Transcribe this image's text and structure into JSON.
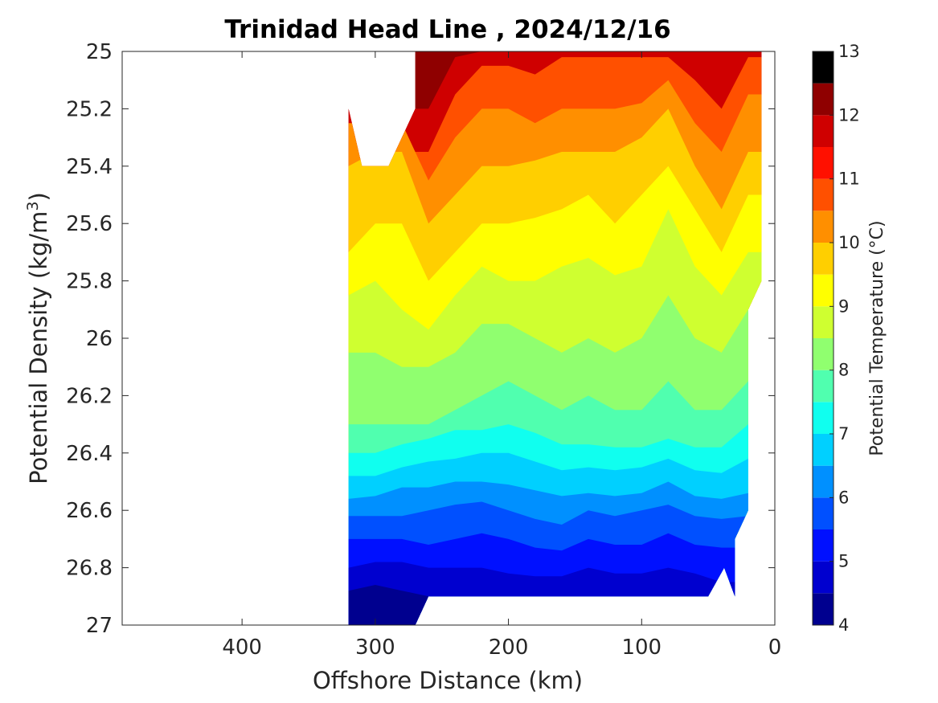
{
  "chart_data": {
    "type": "heatmap",
    "title": "Trinidad Head Line , 2024/12/16",
    "xlabel": "Offshore Distance (km)",
    "ylabel": "Potential Density (kg/m",
    "ylabel_sup": "3",
    "ylabel_close": ")",
    "xlim": [
      490,
      0
    ],
    "x_direction": "reversed",
    "ylim": [
      25,
      27
    ],
    "y_direction": "reversed",
    "x_ticks": [
      400,
      300,
      200,
      100,
      0
    ],
    "x_tick_labels": [
      "400",
      "300",
      "200",
      "100",
      "0"
    ],
    "y_ticks": [
      25,
      25.2,
      25.4,
      25.6,
      25.8,
      26,
      26.2,
      26.4,
      26.6,
      26.8,
      27
    ],
    "y_tick_labels": [
      "25",
      "25.2",
      "25.4",
      "25.6",
      "25.8",
      "26",
      "26.2",
      "26.4",
      "26.6",
      "26.8",
      "27"
    ],
    "grid": false,
    "colorbar": {
      "label": "Potential Temperature (°C)",
      "range": [
        4,
        13
      ],
      "step": 0.5,
      "tick_values": [
        4,
        5,
        6,
        7,
        8,
        9,
        10,
        11,
        12,
        13
      ],
      "tick_labels": [
        "4",
        "5",
        "6",
        "7",
        "8",
        "9",
        "10",
        "11",
        "12",
        "13"
      ],
      "colormap": "jet",
      "colors": [
        "#00008F",
        "#0000CF",
        "#0010FF",
        "#0050FF",
        "#0090FF",
        "#00D0FF",
        "#10FFEF",
        "#50FFAF",
        "#90FF6F",
        "#CFFF30",
        "#FFFF00",
        "#FFCF00",
        "#FF8F00",
        "#FF5000",
        "#FF1000",
        "#CF0000",
        "#8F0000"
      ]
    },
    "distance_km": [
      320,
      300,
      280,
      260,
      240,
      220,
      200,
      180,
      160,
      140,
      120,
      100,
      80,
      60,
      40,
      20
    ],
    "isotherm_density": {
      "12": [
        null,
        null,
        null,
        25.2,
        25.02,
        25.0,
        25.0,
        25.0,
        25.0,
        25.0,
        25.0,
        25.0,
        25.0,
        25.0,
        25.0,
        25.0
      ],
      "11": [
        null,
        null,
        null,
        25.35,
        25.15,
        25.05,
        25.05,
        25.08,
        25.02,
        25.02,
        25.02,
        25.02,
        25.02,
        25.1,
        25.2,
        25.02
      ],
      "10.5": [
        25.25,
        null,
        null,
        25.45,
        25.3,
        25.2,
        25.2,
        25.25,
        25.2,
        25.2,
        25.2,
        25.18,
        25.1,
        25.25,
        25.35,
        25.15
      ],
      "10": [
        25.4,
        25.35,
        25.35,
        25.6,
        25.5,
        25.4,
        25.4,
        25.38,
        25.35,
        25.35,
        25.35,
        25.3,
        25.2,
        25.4,
        25.55,
        25.35
      ],
      "9.5": [
        25.7,
        25.6,
        25.6,
        25.8,
        25.7,
        25.6,
        25.6,
        25.58,
        25.55,
        25.5,
        25.6,
        25.5,
        25.4,
        25.55,
        25.7,
        25.5
      ],
      "9": [
        25.85,
        25.8,
        25.9,
        25.97,
        25.85,
        25.75,
        25.8,
        25.8,
        25.75,
        25.72,
        25.78,
        25.75,
        25.55,
        25.75,
        25.85,
        25.7
      ],
      "8.5": [
        26.05,
        26.05,
        26.1,
        26.1,
        26.05,
        25.95,
        25.95,
        26.0,
        26.05,
        26.0,
        26.05,
        26.0,
        25.85,
        26.0,
        26.05,
        25.9
      ],
      "8": [
        26.3,
        26.3,
        26.3,
        26.3,
        26.25,
        26.2,
        26.15,
        26.2,
        26.25,
        26.2,
        26.25,
        26.25,
        26.15,
        26.25,
        26.25,
        26.15
      ],
      "7.5": [
        26.4,
        26.4,
        26.37,
        26.35,
        26.32,
        26.32,
        26.3,
        26.33,
        26.37,
        26.37,
        26.38,
        26.38,
        26.35,
        26.38,
        26.38,
        26.3
      ],
      "7": [
        26.48,
        26.48,
        26.45,
        26.43,
        26.42,
        26.4,
        26.4,
        26.43,
        26.46,
        26.45,
        26.46,
        26.45,
        26.42,
        26.46,
        26.47,
        26.42
      ],
      "6.5": [
        26.56,
        26.55,
        26.52,
        26.52,
        26.5,
        26.5,
        26.51,
        26.53,
        26.55,
        26.54,
        26.55,
        26.54,
        26.5,
        26.55,
        26.56,
        26.54
      ],
      "6": [
        26.62,
        26.62,
        26.62,
        26.6,
        26.58,
        26.57,
        26.6,
        26.63,
        26.65,
        26.6,
        26.62,
        26.6,
        26.58,
        26.62,
        26.63,
        26.62
      ],
      "5.5": [
        26.7,
        26.7,
        26.7,
        26.72,
        26.7,
        26.68,
        26.7,
        26.73,
        26.74,
        26.7,
        26.72,
        26.72,
        26.68,
        26.72,
        26.73,
        null
      ],
      "5": [
        26.8,
        26.78,
        26.78,
        26.8,
        26.8,
        26.8,
        26.82,
        26.83,
        26.83,
        26.8,
        26.82,
        26.82,
        26.8,
        26.82,
        26.85,
        null
      ],
      "4.5": [
        26.88,
        26.86,
        26.88,
        26.9,
        26.9,
        26.9,
        26.9,
        26.9,
        26.9,
        26.9,
        26.9,
        26.9,
        26.9,
        26.9,
        null,
        null
      ]
    }
  }
}
